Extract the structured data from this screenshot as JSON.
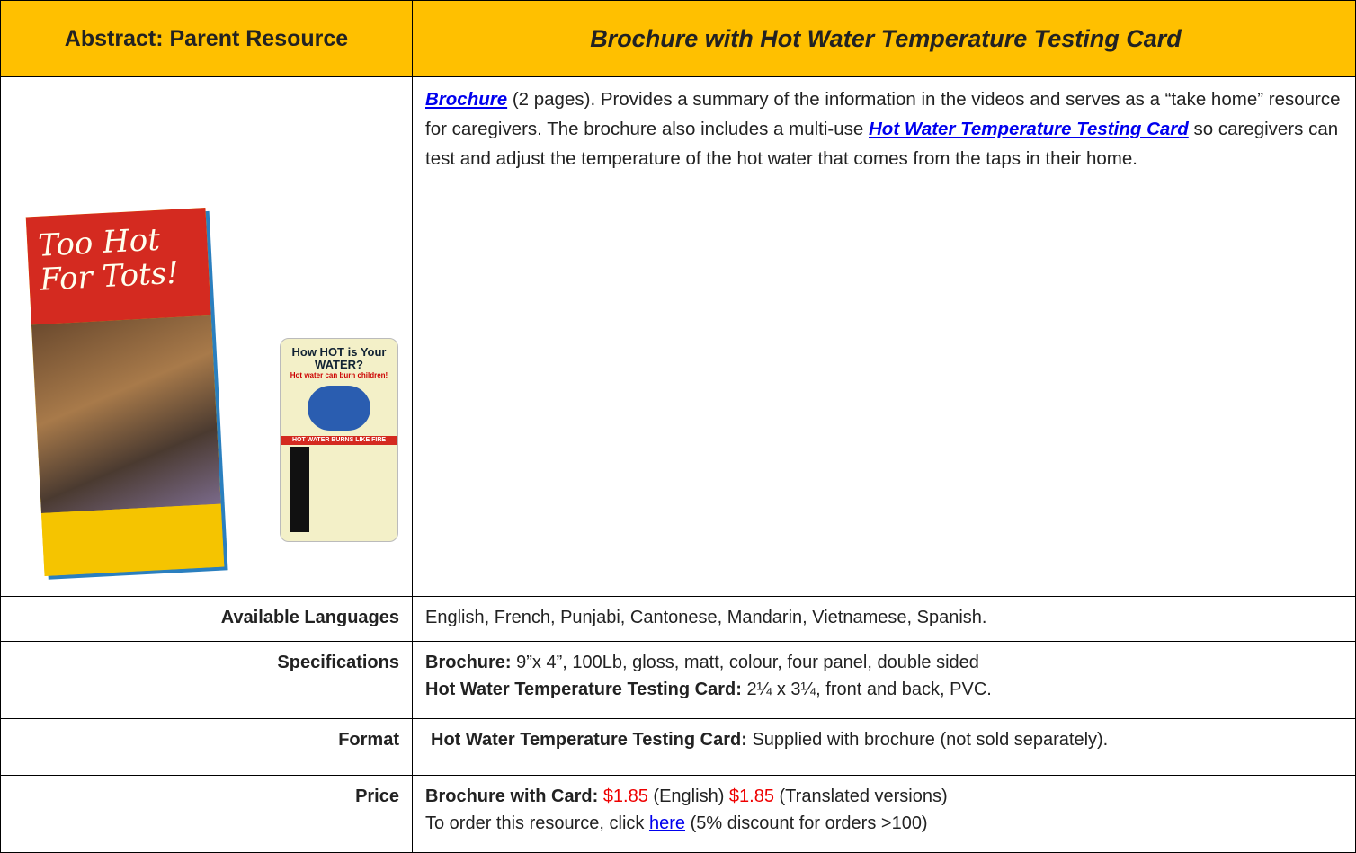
{
  "header": {
    "label": "Abstract:",
    "resource": "Parent Resource",
    "title": "Brochure with Hot Water Temperature Testing Card"
  },
  "description": {
    "link1": "Brochure",
    "text1": " (2 pages). Provides a summary of the information in the videos and serves as a “take home” resource for caregivers. The brochure also includes a multi-use ",
    "link2": "Hot Water Temperature Testing Card",
    "text2": " so caregivers can test and adjust the temperature of the hot water that comes from the taps in their home."
  },
  "images": {
    "brochure_title": "Too Hot For Tots!",
    "card_title": "How HOT is Your WATER?",
    "card_subtitle": "Hot water can burn children!",
    "card_banner": "HOT WATER BURNS LIKE FIRE"
  },
  "languages": {
    "label": "Available Languages",
    "text": "English, French, Punjabi, Cantonese, Mandarin, Vietnamese, Spanish."
  },
  "specifications": {
    "label": "Specifications",
    "lines": [
      {
        "bold": "Brochure:",
        "text": " 9”x 4”, 100Lb, gloss, matt, colour, four panel, double sided"
      },
      {
        "bold": "Hot Water Temperature Testing Card:",
        "text": " 2¼ x 3¼, front and back, PVC."
      }
    ]
  },
  "format": {
    "label": "Format",
    "bold": "Hot Water Temperature Testing Card:",
    "text": " Supplied with brochure (not sold separately)."
  },
  "price": {
    "label": "Price",
    "bold": "Brochure with Card:",
    "price1": "$1.85",
    "text1": " (English) ",
    "price2": "$1.85",
    "text2": " (Translated versions)",
    "order_text": "To order this resource, click ",
    "link": "here",
    "order_note": " (5% discount for orders >100)"
  }
}
